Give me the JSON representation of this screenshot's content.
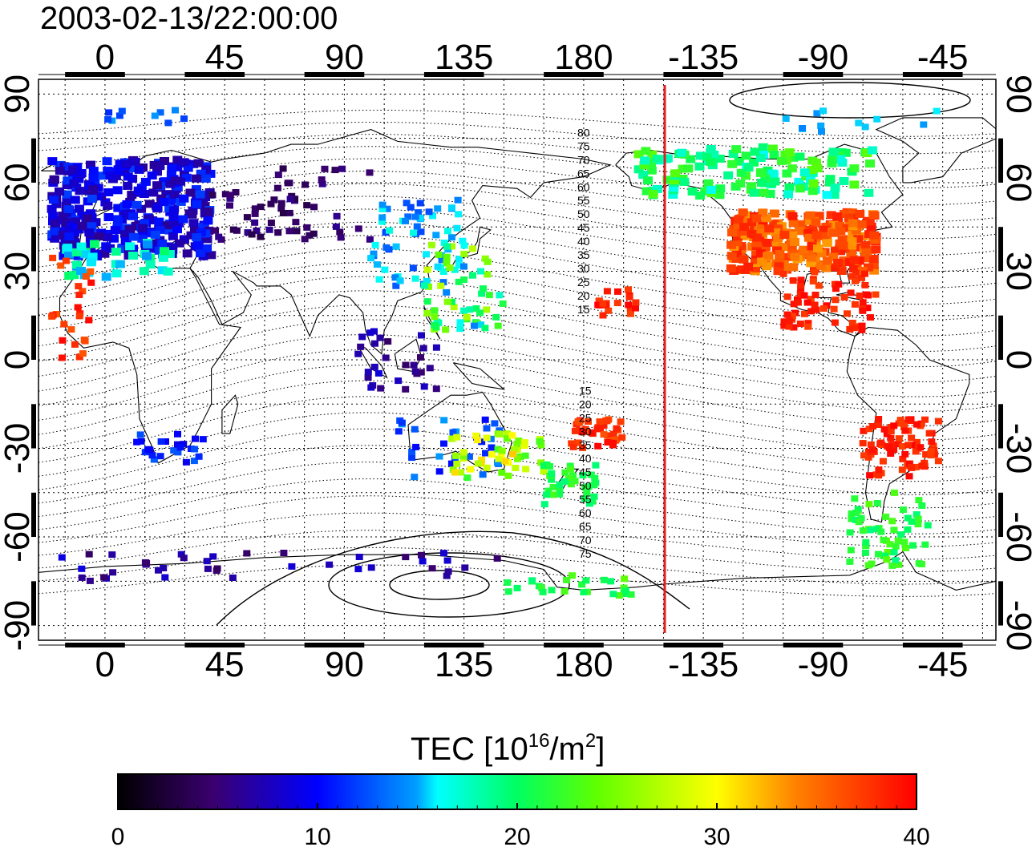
{
  "title": "2003-02-13/22:00:00",
  "map": {
    "lon_ticks_labels": [
      "0",
      "45",
      "90",
      "135",
      "180",
      "-135",
      "-90",
      "-45"
    ],
    "lat_ticks_labels": [
      "90",
      "60",
      "30",
      "0",
      "-30",
      "-60",
      "-90"
    ],
    "contour_labels_north": [
      "80",
      "75",
      "70",
      "65",
      "60",
      "55",
      "50",
      "45",
      "40",
      "35",
      "30",
      "25",
      "20",
      "15"
    ],
    "contour_labels_south": [
      "15",
      "20",
      "25",
      "30",
      "35",
      "40",
      "45",
      "50",
      "55",
      "60",
      "65",
      "70",
      "75"
    ],
    "terminator_color": "#e02020",
    "coastline_color": "#000000"
  },
  "colorbar": {
    "title_main": "TEC  [10",
    "title_sup1": "16",
    "title_mid": "/m",
    "title_sup2": "2",
    "title_end": "]",
    "tick_labels": [
      "0",
      "10",
      "20",
      "30",
      "40"
    ],
    "min": 0,
    "max": 40,
    "colors": [
      "#000000",
      "#3a0070",
      "#0000ff",
      "#00ffff",
      "#00ff00",
      "#ffff00",
      "#ff8000",
      "#ff0000"
    ]
  }
}
